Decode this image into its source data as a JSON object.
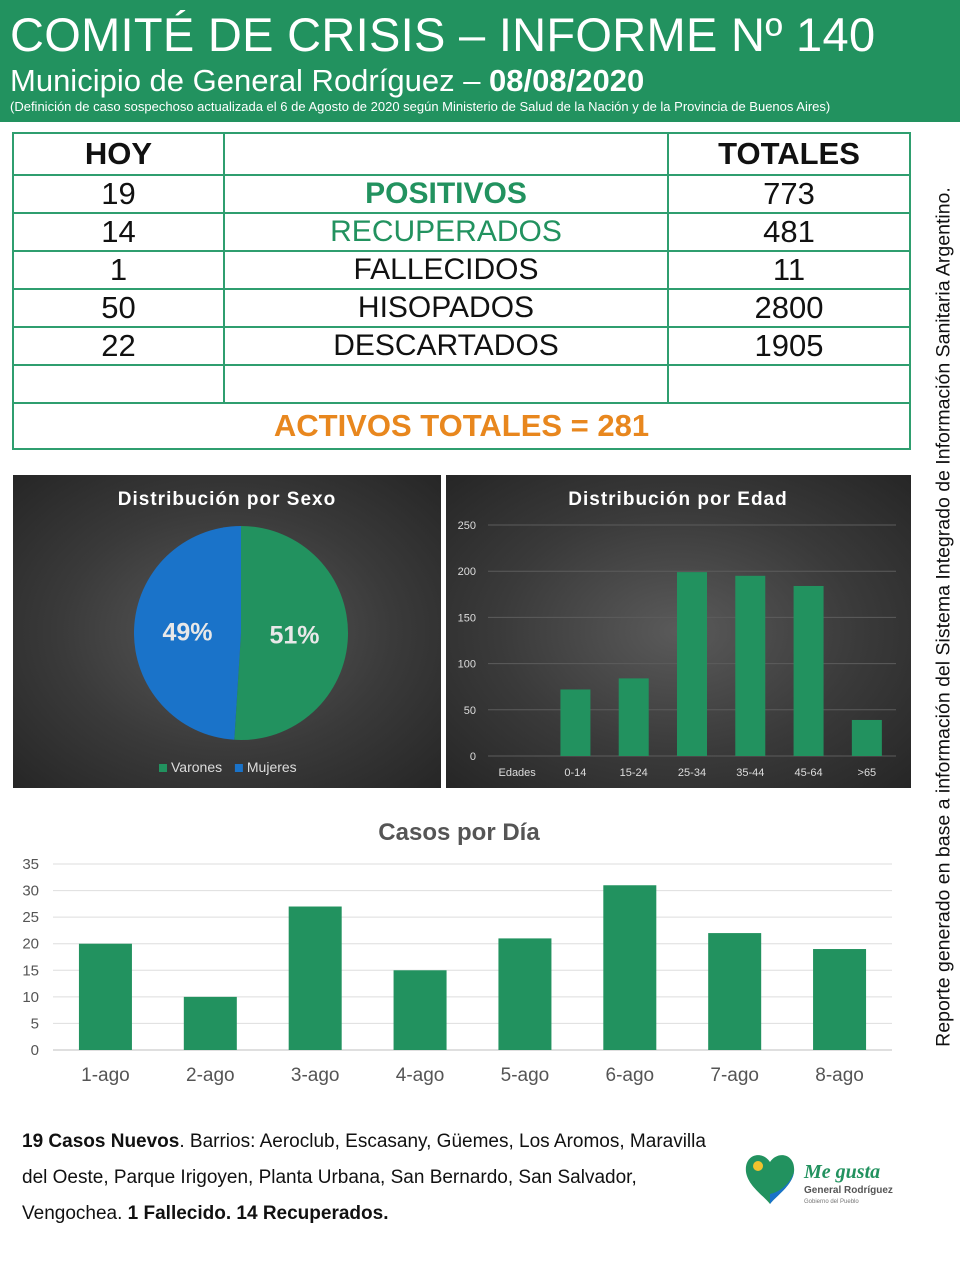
{
  "header": {
    "title": "COMITÉ DE CRISIS – INFORME Nº 140",
    "subtitle_prefix": "Municipio de General Rodríguez – ",
    "date": "08/08/2020",
    "note": "(Definición de caso sospechoso actualizada el 6 de Agosto de 2020 según Ministerio de Salud de la Nación y de la Provincia de Buenos Aires)"
  },
  "summary": {
    "col_today": "HOY",
    "col_totals": "TOTALES",
    "rows": [
      {
        "today": "19",
        "label": "POSITIVOS",
        "total": "773"
      },
      {
        "today": "14",
        "label": "RECUPERADOS",
        "total": "481"
      },
      {
        "today": "1",
        "label": "FALLECIDOS",
        "total": "11"
      },
      {
        "today": "50",
        "label": "HISOPADOS",
        "total": "2800"
      },
      {
        "today": "22",
        "label": "DESCARTADOS",
        "total": "1905"
      }
    ],
    "activos": "ACTIVOS TOTALES = 281"
  },
  "side_note": "Reporte generado en base a información del Sistema Integrado de Información Sanitaria Argentino.",
  "colors": {
    "green": "#22925f",
    "blue": "#1a73c9",
    "orange": "#e8871e"
  },
  "chart_data": [
    {
      "type": "pie",
      "title": "Distribución por Sexo",
      "labels": [
        "Varones",
        "Mujeres"
      ],
      "values": [
        51,
        49
      ],
      "value_labels": [
        "51%",
        "49%"
      ],
      "colors": [
        "#22925f",
        "#1a73c9"
      ],
      "legend": "bottom"
    },
    {
      "type": "bar",
      "title": "Distribución por Edad",
      "categories": [
        "Edades",
        "0-14",
        "15-24",
        "25-34",
        "35-44",
        "45-64",
        ">65"
      ],
      "values": [
        0,
        72,
        84,
        199,
        195,
        184,
        39
      ],
      "yticks": [
        "0",
        "50",
        "100",
        "150",
        "200",
        "250"
      ],
      "ylim": [
        0,
        250
      ],
      "grid": true
    },
    {
      "type": "bar",
      "title": "Casos por Día",
      "categories": [
        "1-ago",
        "2-ago",
        "3-ago",
        "4-ago",
        "5-ago",
        "6-ago",
        "7-ago",
        "8-ago"
      ],
      "values": [
        20,
        10,
        27,
        15,
        21,
        31,
        22,
        19
      ],
      "yticks": [
        "0",
        "5",
        "10",
        "15",
        "20",
        "25",
        "30",
        "35"
      ],
      "ylim": [
        0,
        35
      ],
      "grid": true
    }
  ],
  "footer": {
    "bold1": "19 Casos Nuevos",
    "text1": ". Barrios: Aeroclub, Escasany, Güemes, Los Aromos, Maravilla del Oeste, Parque Irigoyen, Planta Urbana, San Bernardo, San Salvador, Vengochea. ",
    "bold2": "1 Fallecido. 14 Recuperados."
  },
  "logo": {
    "line1": "Me gusta",
    "line2": "General Rodríguez",
    "line3": "Gobierno del Pueblo"
  }
}
